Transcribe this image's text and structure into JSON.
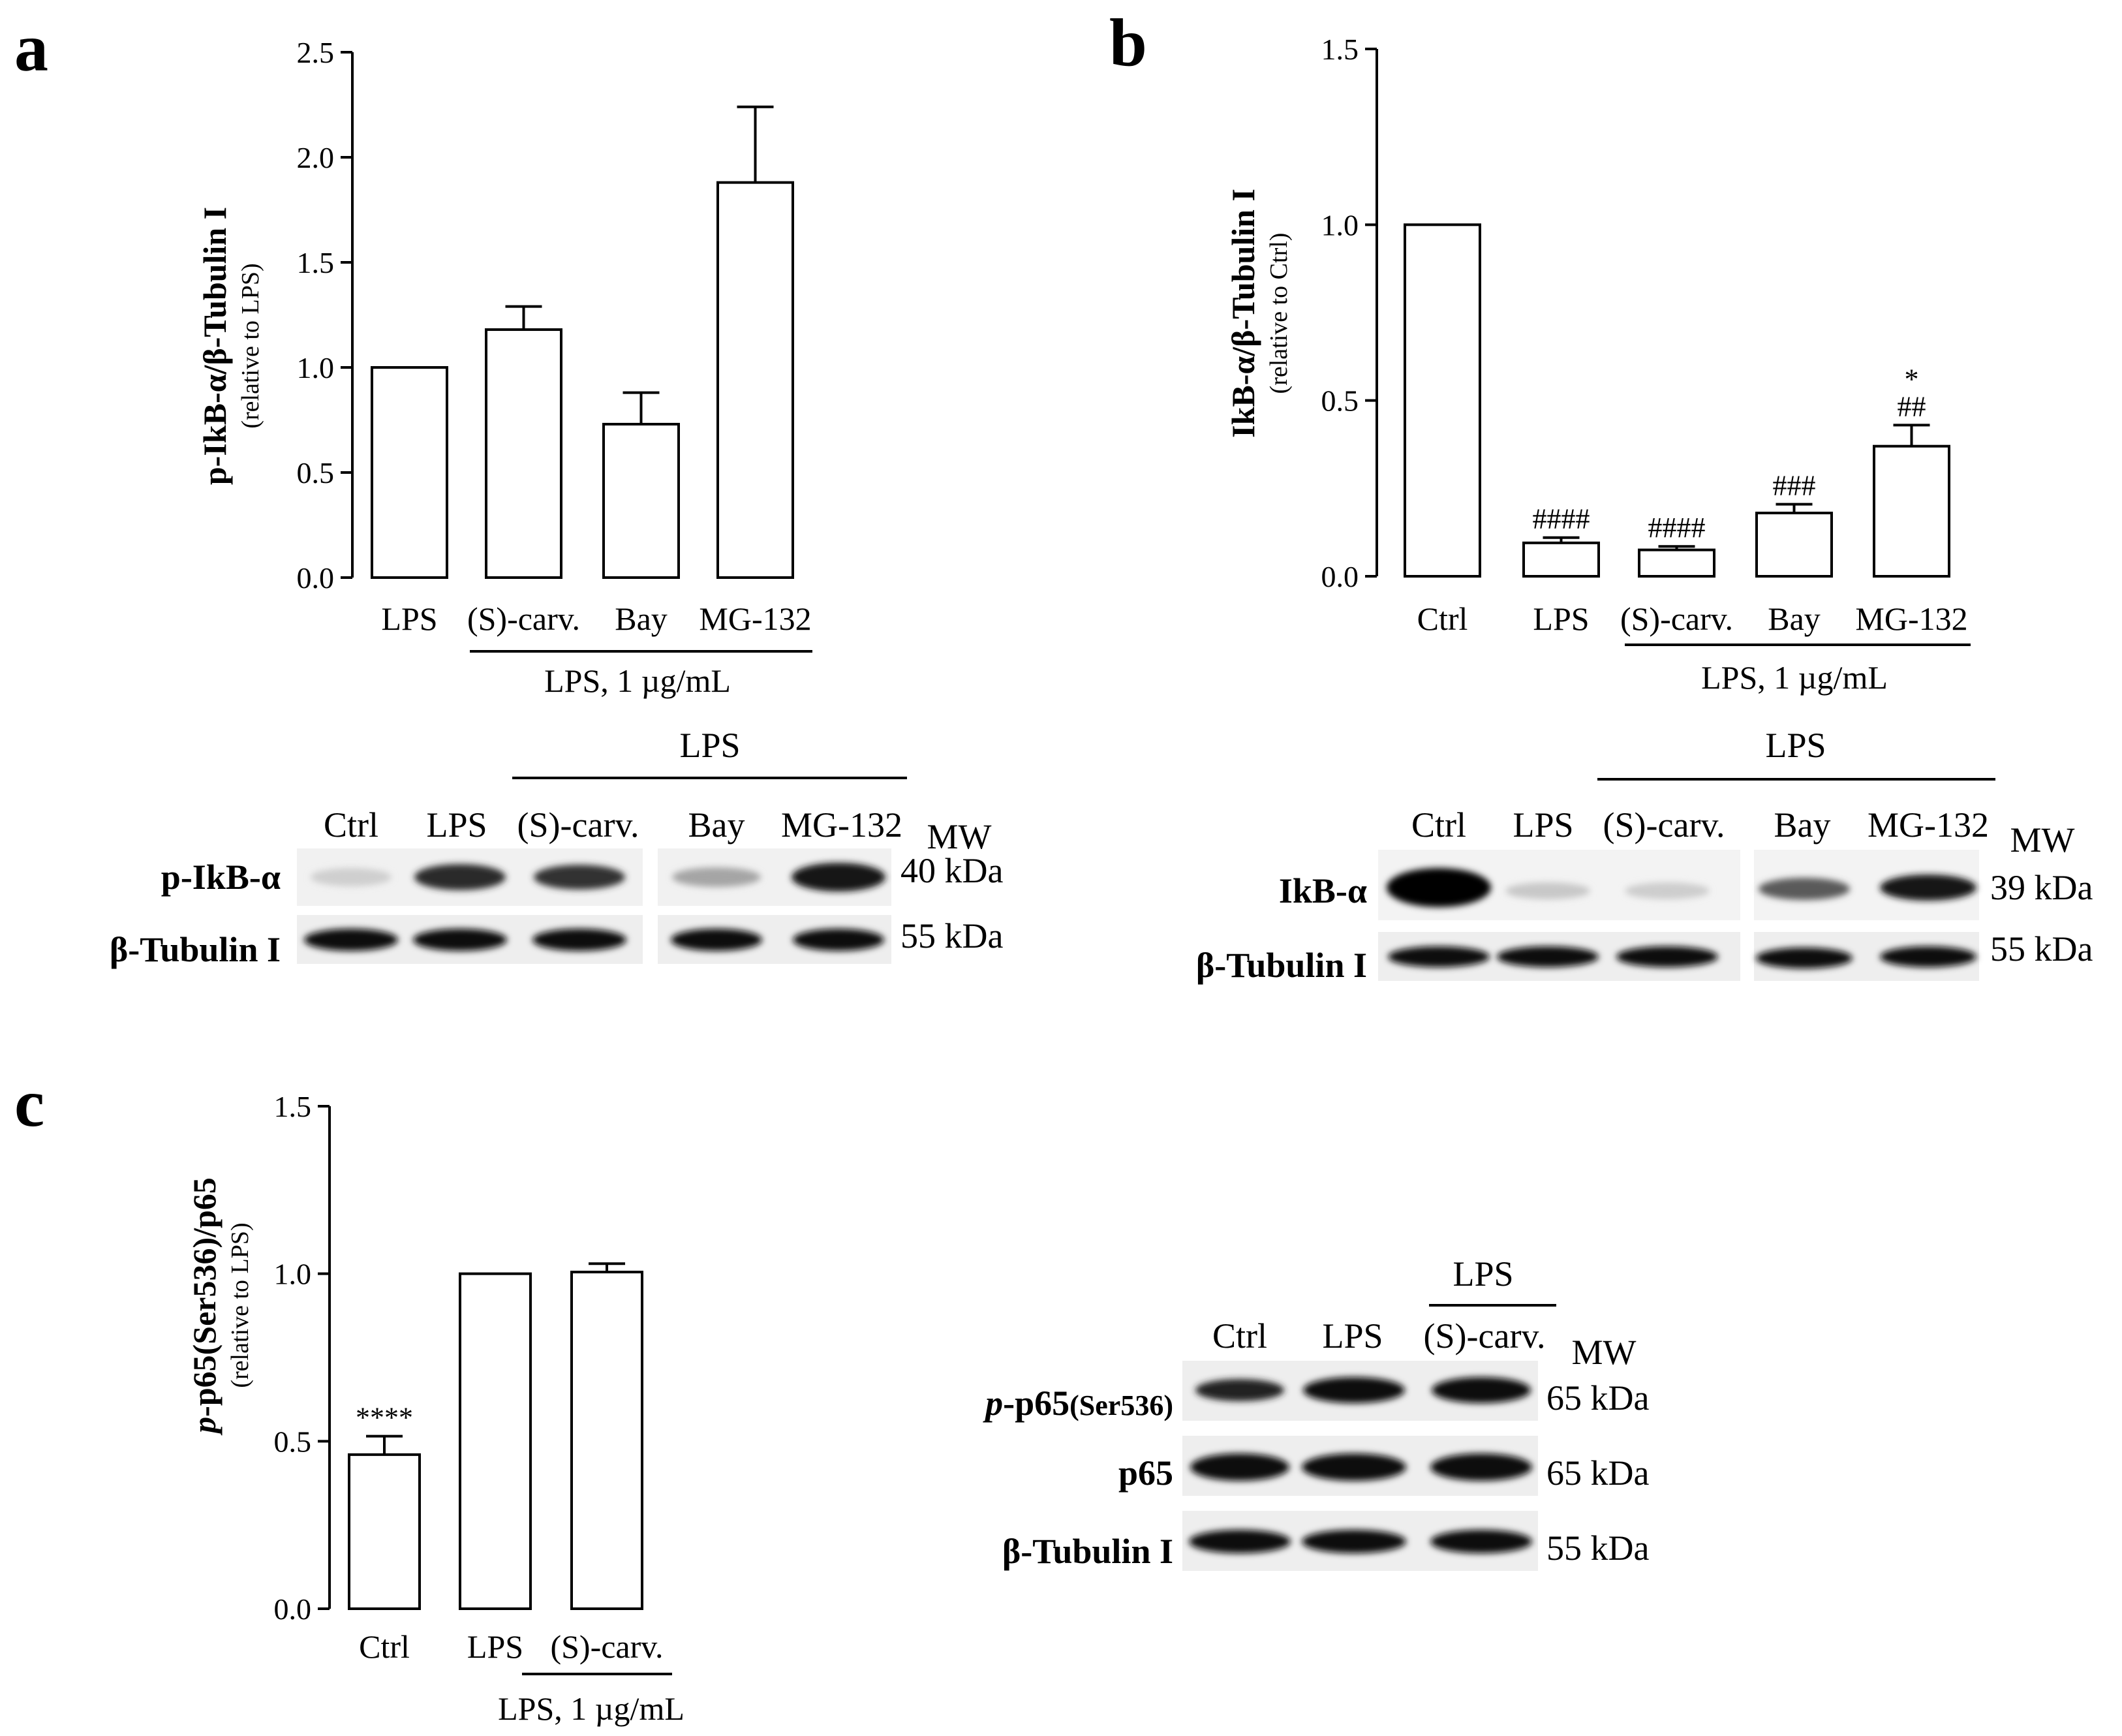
{
  "figure": {
    "panel_a": {
      "letter": "a",
      "ylabel": "p-IkB-α/β-Tubulin I",
      "ylabel_sub": "(relative to LPS)",
      "treatment_label": "LPS, 1 µg/mL",
      "blot": {
        "header": "LPS",
        "lanes": [
          "Ctrl",
          "LPS",
          "(S)-carv.",
          "Bay",
          "MG-132"
        ],
        "mw_header": "MW",
        "rows": [
          {
            "label": "p-IkB-α",
            "mw": "40 kDa"
          },
          {
            "label": "β-Tubulin I",
            "mw": "55 kDa"
          }
        ]
      }
    },
    "panel_b": {
      "letter": "b",
      "ylabel": "IkB-α/β-Tubulin I",
      "ylabel_sub": "(relative to Ctrl)",
      "treatment_label": "LPS, 1 µg/mL",
      "blot": {
        "header": "LPS",
        "lanes": [
          "Ctrl",
          "LPS",
          "(S)-carv.",
          "Bay",
          "MG-132"
        ],
        "mw_header": "MW",
        "rows": [
          {
            "label": "IkB-α",
            "mw": "39 kDa"
          },
          {
            "label": "β-Tubulin I",
            "mw": "55 kDa"
          }
        ]
      }
    },
    "panel_c": {
      "letter": "c",
      "ylabel_italic": "p",
      "ylabel": "-p65(Ser536)/p65",
      "ylabel_sub": "(relative to LPS)",
      "treatment_label": "LPS, 1 µg/mL",
      "blot": {
        "header": "LPS",
        "lanes": [
          "Ctrl",
          "LPS",
          "(S)-carv."
        ],
        "mw_header": "MW",
        "rows": [
          {
            "label_italic": "p",
            "label": "-p65",
            "label_small": "(Ser536)",
            "mw": "65 kDa"
          },
          {
            "label": "p65",
            "mw": "65 kDa"
          },
          {
            "label": "β-Tubulin I",
            "mw": "55 kDa"
          }
        ]
      }
    }
  },
  "chart_data": [
    {
      "id": "a",
      "type": "bar",
      "categories": [
        "LPS",
        "(S)-carv.",
        "Bay",
        "MG-132"
      ],
      "values": [
        1.0,
        1.18,
        0.73,
        1.88
      ],
      "errors": [
        0,
        0.11,
        0.15,
        0.36
      ],
      "annotations": [
        "",
        "",
        "",
        ""
      ],
      "ylabel": "p-IkB-α/β-Tubulin I",
      "ylim": [
        0,
        2.5
      ],
      "yticks": [
        "0.0",
        "0.5",
        "1.0",
        "1.5",
        "2.0",
        "2.5"
      ],
      "ytick_values": [
        0,
        0.5,
        1.0,
        1.5,
        2.0,
        2.5
      ]
    },
    {
      "id": "b",
      "type": "bar",
      "categories": [
        "Ctrl",
        "LPS",
        "(S)-carv.",
        "Bay",
        "MG-132"
      ],
      "values": [
        1.0,
        0.095,
        0.075,
        0.18,
        0.37
      ],
      "errors": [
        0,
        0.015,
        0.01,
        0.025,
        0.06
      ],
      "annotations": [
        "",
        "####",
        "####",
        "###",
        "##"
      ],
      "annotations_top": [
        "",
        "",
        "",
        "",
        "*"
      ],
      "ylabel": "IkB-α/β-Tubulin I",
      "ylim": [
        0,
        1.5
      ],
      "yticks": [
        "0.0",
        "0.5",
        "1.0",
        "1.5"
      ],
      "ytick_values": [
        0,
        0.5,
        1.0,
        1.5
      ]
    },
    {
      "id": "c",
      "type": "bar",
      "categories": [
        "Ctrl",
        "LPS",
        "(S)-carv."
      ],
      "values": [
        0.46,
        1.0,
        1.005
      ],
      "errors": [
        0.055,
        0,
        0.025
      ],
      "annotations": [
        "****",
        "",
        ""
      ],
      "ylabel": "p-p65(Ser536)/p65",
      "ylim": [
        0,
        1.5
      ],
      "yticks": [
        "0.0",
        "0.5",
        "1.0",
        "1.5"
      ],
      "ytick_values": [
        0,
        0.5,
        1.0,
        1.5
      ]
    }
  ]
}
